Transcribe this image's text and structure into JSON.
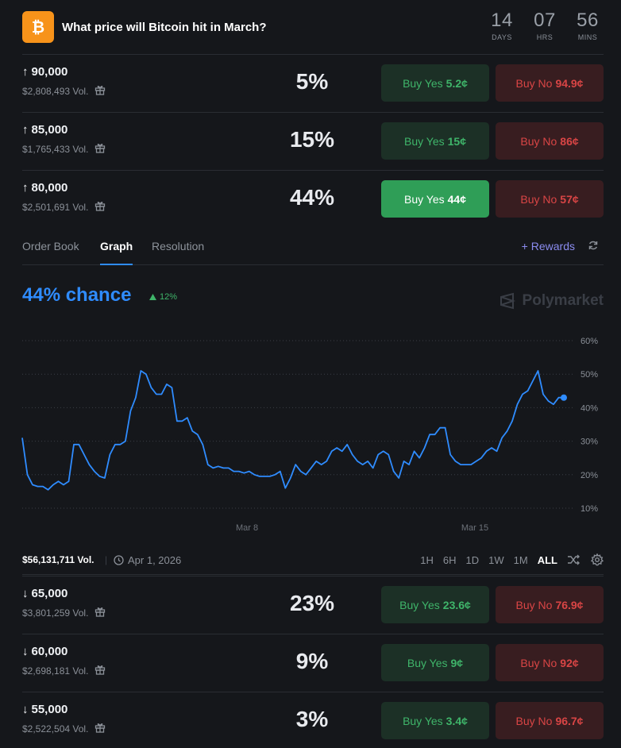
{
  "header": {
    "title": "What price will Bitcoin hit in March?",
    "timer": [
      {
        "value": "14",
        "label": "DAYS"
      },
      {
        "value": "07",
        "label": "HRS"
      },
      {
        "value": "56",
        "label": "MINS"
      }
    ]
  },
  "outcomes_up": [
    {
      "price": "90,000",
      "volume": "$2,808,493 Vol.",
      "percent": "5%",
      "yes_label": "Buy Yes",
      "yes_price": "5.2¢",
      "no_label": "Buy No",
      "no_price": "94.9¢"
    },
    {
      "price": "85,000",
      "volume": "$1,765,433 Vol.",
      "percent": "15%",
      "yes_label": "Buy Yes",
      "yes_price": "15¢",
      "no_label": "Buy No",
      "no_price": "86¢"
    },
    {
      "price": "80,000",
      "volume": "$2,501,691 Vol.",
      "percent": "44%",
      "yes_label": "Buy Yes",
      "yes_price": "44¢",
      "no_label": "Buy No",
      "no_price": "57¢"
    }
  ],
  "tabs": [
    "Order Book",
    "Graph",
    "Resolution"
  ],
  "active_tab": "Graph",
  "rewards_label": "Rewards",
  "chance_text": "44% chance",
  "chance_delta": "12%",
  "brand": "Polymarket",
  "colors": {
    "accent": "#2f8cff",
    "yes": "#3fb56a",
    "no": "#d94545",
    "bitcoin": "#f7931a",
    "rewards": "#8b8cf0"
  },
  "chart_data": {
    "type": "line",
    "x_ticks": [
      "Mar 8",
      "Mar 15"
    ],
    "y_ticks": [
      "60%",
      "50%",
      "40%",
      "30%",
      "20%",
      "10%"
    ],
    "ylim": [
      10,
      60
    ],
    "series": [
      {
        "values": [
          31,
          20,
          17,
          16.5,
          16.5,
          15.5,
          17,
          18,
          17,
          18,
          29,
          29,
          26,
          23,
          21,
          19.5,
          19,
          26,
          29,
          29,
          30,
          39,
          43,
          51,
          50,
          46,
          44,
          44,
          47,
          46,
          36,
          36,
          37,
          33,
          32,
          29,
          23,
          22,
          22.5,
          22,
          22,
          21,
          21,
          20.5,
          21,
          20,
          19.5,
          19.5,
          19.5,
          20,
          21,
          16,
          19,
          23,
          21,
          20,
          22,
          24,
          23,
          24,
          27,
          28,
          27,
          29,
          26,
          24,
          23,
          24,
          22,
          26,
          27,
          26,
          21,
          19,
          24,
          23,
          27,
          25,
          28,
          32,
          32,
          34,
          34,
          26,
          24,
          23,
          23,
          23,
          24,
          25,
          27,
          28,
          27,
          31,
          33,
          36,
          41,
          44,
          45,
          48,
          51,
          44,
          42,
          41,
          43,
          43
        ]
      }
    ]
  },
  "footer": {
    "volume": "$56,131,711 Vol.",
    "date": "Apr 1, 2026",
    "ranges": [
      "1H",
      "6H",
      "1D",
      "1W",
      "1M",
      "ALL"
    ],
    "active_range": "ALL"
  },
  "outcomes_down": [
    {
      "price": "65,000",
      "volume": "$3,801,259 Vol.",
      "percent": "23%",
      "yes_label": "Buy Yes",
      "yes_price": "23.6¢",
      "no_label": "Buy No",
      "no_price": "76.9¢"
    },
    {
      "price": "60,000",
      "volume": "$2,698,181 Vol.",
      "percent": "9%",
      "yes_label": "Buy Yes",
      "yes_price": "9¢",
      "no_label": "Buy No",
      "no_price": "92¢"
    },
    {
      "price": "55,000",
      "volume": "$2,522,504 Vol.",
      "percent": "3%",
      "yes_label": "Buy Yes",
      "yes_price": "3.4¢",
      "no_label": "Buy No",
      "no_price": "96.7¢"
    }
  ]
}
